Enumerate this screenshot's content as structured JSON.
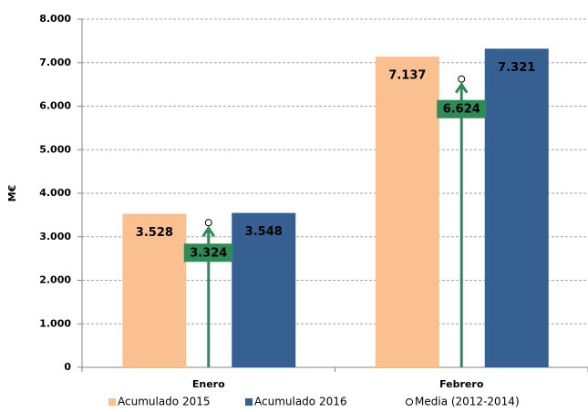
{
  "chart_data": {
    "type": "bar",
    "y_label": "M€",
    "categories": [
      "Enero",
      "Febrero"
    ],
    "ylim": [
      0,
      8000
    ],
    "yticks": [
      0,
      {
        "value": 1000,
        "label": "1.000"
      },
      {
        "value": 2000,
        "label": "2.000"
      },
      {
        "value": 3000,
        "label": "3.000"
      },
      {
        "value": 4000,
        "label": "4.000"
      },
      {
        "value": 5000,
        "label": "5.000"
      },
      {
        "value": 6000,
        "label": "6.000"
      },
      {
        "value": 7000,
        "label": "7.000"
      },
      {
        "value": 8000,
        "label": "8.000"
      }
    ],
    "grid": true,
    "legend": "bottom",
    "series": [
      {
        "name": "Acumulado 2015",
        "color": "#fac090",
        "values": [
          3528,
          7137
        ],
        "value_labels": [
          "3.528",
          "7.137"
        ]
      },
      {
        "name": "Acumulado 2016",
        "color": "#376092",
        "values": [
          3548,
          7321
        ],
        "value_labels": [
          "3.548",
          "7.321"
        ]
      },
      {
        "name": "Media (2012-2014)",
        "type": "marker",
        "color": "#2e8b57",
        "values": [
          3324,
          6624
        ],
        "value_labels": [
          "3.324",
          "6.624"
        ]
      }
    ]
  }
}
